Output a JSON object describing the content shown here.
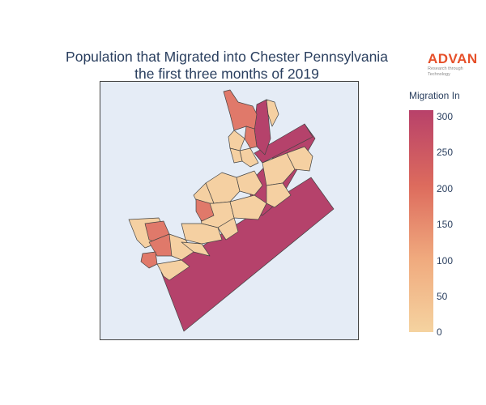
{
  "title_line1": "Population that Migrated into Chester Pennsylvania",
  "title_line2": "the first three months of 2019",
  "logo": {
    "word": "ADVAN",
    "tagline": "Research through Technology",
    "color": "#e6502a"
  },
  "colorbar": {
    "title": "Migration In",
    "ticks": [
      "300",
      "250",
      "200",
      "150",
      "100",
      "50",
      "0"
    ],
    "range": [
      0,
      315
    ],
    "colors": [
      "#f5d3a0",
      "#f0aa7e",
      "#dd6b5d",
      "#b8416a"
    ]
  },
  "map": {
    "background": "#e5ecf6",
    "boundary_color": "#444444"
  }
}
